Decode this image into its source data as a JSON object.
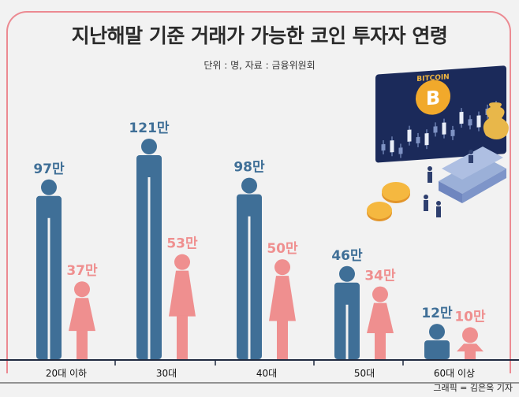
{
  "title": "지난해말 기준 거래가 가능한 코인 투자자 연령",
  "unit_source": "단위 : 명, 자료 : 금융위원회",
  "credit": "그래픽 = 김은옥 기자",
  "illustration": {
    "coin_label": "BITCOIN",
    "coin_symbol": "B"
  },
  "colors": {
    "male": "#3f6f97",
    "female": "#ef8f8f",
    "frame": "#ec8a92",
    "axis": "#1f2a40"
  },
  "chart_data": {
    "type": "bar",
    "title": "지난해말 기준 거래가 가능한 코인 투자자 연령",
    "categories": [
      "20대 이하",
      "30대",
      "40대",
      "50대",
      "60대 이상"
    ],
    "series": [
      {
        "values": [
          97,
          121,
          98,
          46,
          12
        ],
        "labels": [
          "97만",
          "121만",
          "98만",
          "46만",
          "12만"
        ]
      },
      {
        "values": [
          37,
          53,
          50,
          34,
          10
        ],
        "labels": [
          "37만",
          "53만",
          "50만",
          "34만",
          "10만"
        ]
      }
    ],
    "unit": "만 명",
    "ylim": [
      0,
      121
    ]
  }
}
